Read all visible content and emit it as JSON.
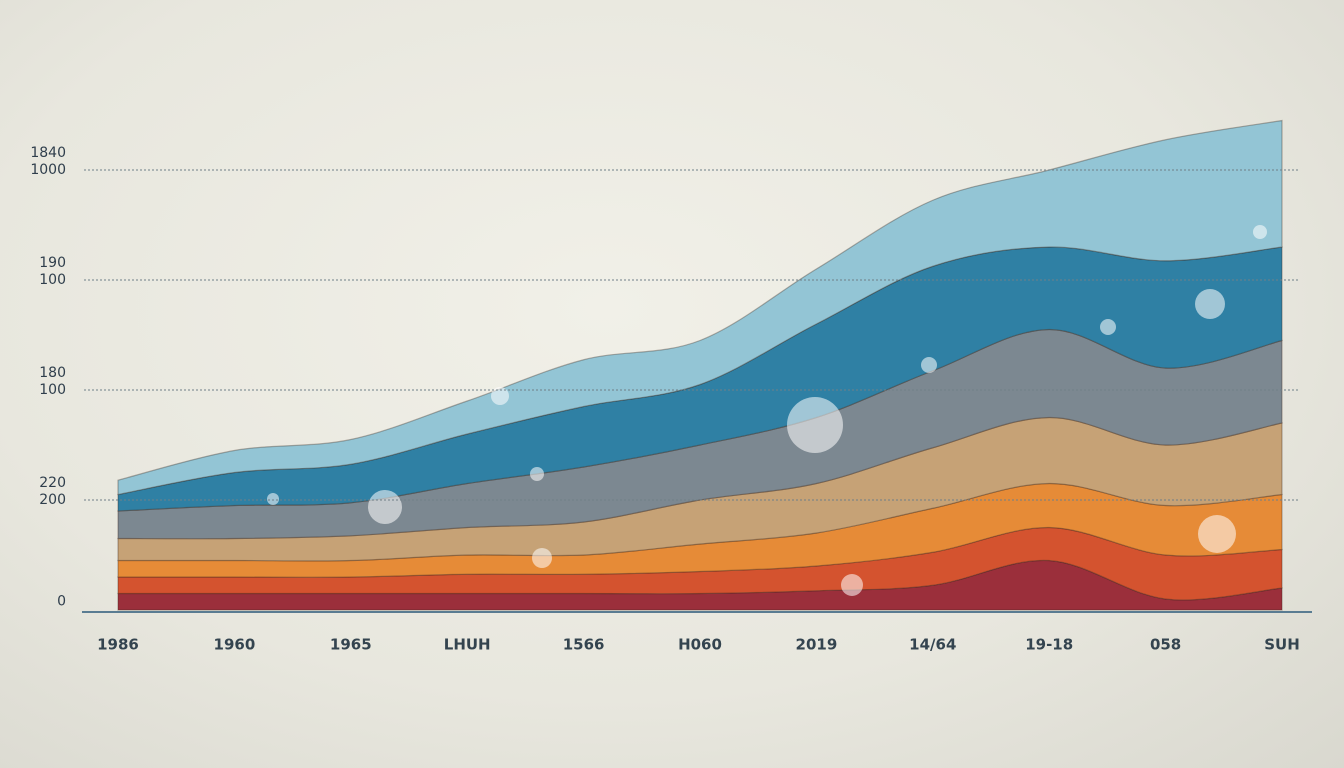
{
  "chart_data": {
    "type": "stacked_area",
    "categories": [
      "1986",
      "1960",
      "1965",
      "LHUH",
      "1566",
      "H060",
      "2019",
      "14/64",
      "19-18",
      "058",
      "SUH"
    ],
    "series": [
      {
        "color": "#9b2f3b",
        "values": [
          30,
          30,
          30,
          30,
          30,
          30,
          35,
          45,
          90,
          20,
          40
        ]
      },
      {
        "color": "#d4532f",
        "values": [
          30,
          30,
          30,
          35,
          35,
          40,
          45,
          60,
          60,
          80,
          70
        ]
      },
      {
        "color": "#e68b37",
        "values": [
          30,
          30,
          30,
          35,
          35,
          50,
          60,
          80,
          80,
          90,
          100
        ]
      },
      {
        "color": "#c6a276",
        "values": [
          40,
          40,
          45,
          50,
          60,
          80,
          90,
          110,
          120,
          110,
          130
        ]
      },
      {
        "color": "#7c8891",
        "values": [
          50,
          60,
          60,
          80,
          100,
          100,
          120,
          140,
          160,
          140,
          150
        ]
      },
      {
        "color": "#2f80a4",
        "values": [
          30,
          60,
          70,
          90,
          110,
          110,
          170,
          190,
          150,
          195,
          170
        ]
      },
      {
        "color": "#93c5d5",
        "values": [
          26,
          40,
          45,
          60,
          85,
          80,
          100,
          120,
          140,
          220,
          230
        ]
      }
    ],
    "ylim": [
      0,
      800
    ],
    "yticks": [
      {
        "value": 0,
        "label": "0"
      },
      {
        "value": 200,
        "label": "220\n200"
      },
      {
        "value": 400,
        "label": "180\n100"
      },
      {
        "value": 600,
        "label": "190\n100"
      },
      {
        "value": 800,
        "label": "1840\n1000"
      }
    ],
    "grid": true
  }
}
